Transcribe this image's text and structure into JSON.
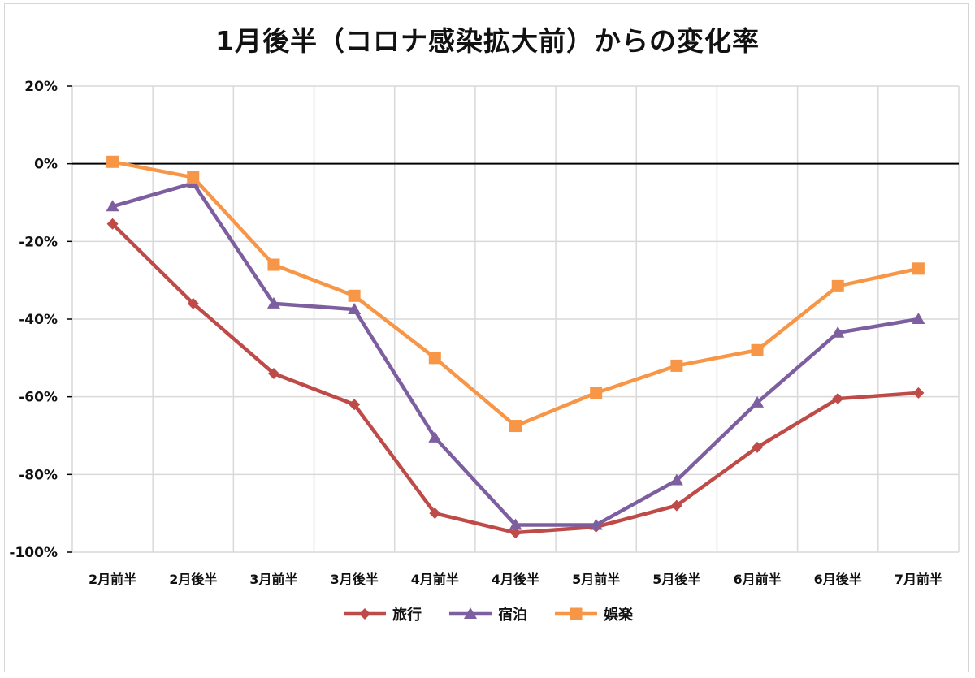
{
  "chart_data": {
    "type": "line",
    "title": "1月後半（コロナ感染拡大前）からの変化率",
    "xlabel": "",
    "ylabel": "",
    "categories": [
      "2月前半",
      "2月後半",
      "3月前半",
      "3月後半",
      "4月前半",
      "4月後半",
      "5月前半",
      "5月後半",
      "6月前半",
      "6月後半",
      "7月前半"
    ],
    "ylim": [
      -100,
      20
    ],
    "yticks": [
      20,
      0,
      -20,
      -40,
      -60,
      -80,
      -100
    ],
    "ytick_labels": [
      "20%",
      "0%",
      "-20%",
      "-40%",
      "-60%",
      "-80%",
      "-100%"
    ],
    "grid": true,
    "legend_position": "bottom",
    "series": [
      {
        "name": "旅行",
        "color": "#be4b48",
        "marker": "diamond",
        "values": [
          -15.5,
          -36,
          -54,
          -62,
          -90,
          -95,
          -93.5,
          -88,
          -73,
          -60.5,
          -59
        ]
      },
      {
        "name": "宿泊",
        "color": "#7d5fa0",
        "marker": "triangle",
        "values": [
          -11,
          -5,
          -36,
          -37.5,
          -70.5,
          -93,
          -93,
          -81.5,
          -61.5,
          -43.5,
          -40
        ]
      },
      {
        "name": "娯楽",
        "color": "#f79646",
        "marker": "square",
        "values": [
          0.5,
          -3.5,
          -26,
          -34,
          -50,
          -67.5,
          -59,
          -52,
          -48,
          -31.5,
          -27
        ]
      }
    ]
  }
}
